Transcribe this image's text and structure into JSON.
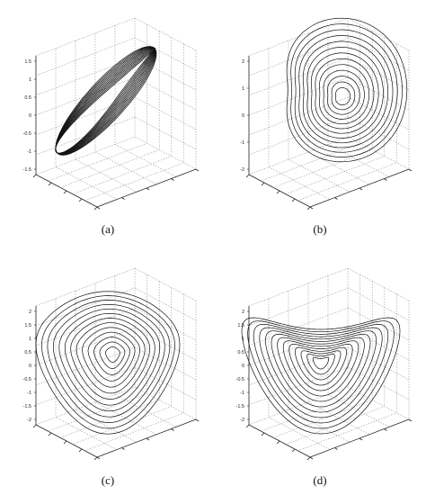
{
  "figure": {
    "panels": [
      {
        "id": "a",
        "caption": "(a)",
        "z_ticks": [
          "1.5",
          "1",
          "0.5",
          "0",
          "-0.5",
          "-1",
          "-1.5"
        ],
        "curve_count": 13
      },
      {
        "id": "b",
        "caption": "(b)",
        "z_ticks": [
          "2",
          "1",
          "0",
          "-1",
          "-2"
        ],
        "curve_count": 13
      },
      {
        "id": "c",
        "caption": "(c)",
        "z_ticks": [
          "2",
          "1.5",
          "1",
          "0.5",
          "0",
          "-0.5",
          "-1",
          "-1.5",
          "-2"
        ],
        "curve_count": 13
      },
      {
        "id": "d",
        "caption": "(d)",
        "z_ticks": [
          "2",
          "1.5",
          "1",
          "0.5",
          "0",
          "-0.5",
          "-1",
          "-1.5",
          "-2"
        ],
        "curve_count": 13
      }
    ],
    "colors": {
      "curve": "#111111",
      "grid": "#9a9a9a",
      "axis": "#222222"
    }
  }
}
